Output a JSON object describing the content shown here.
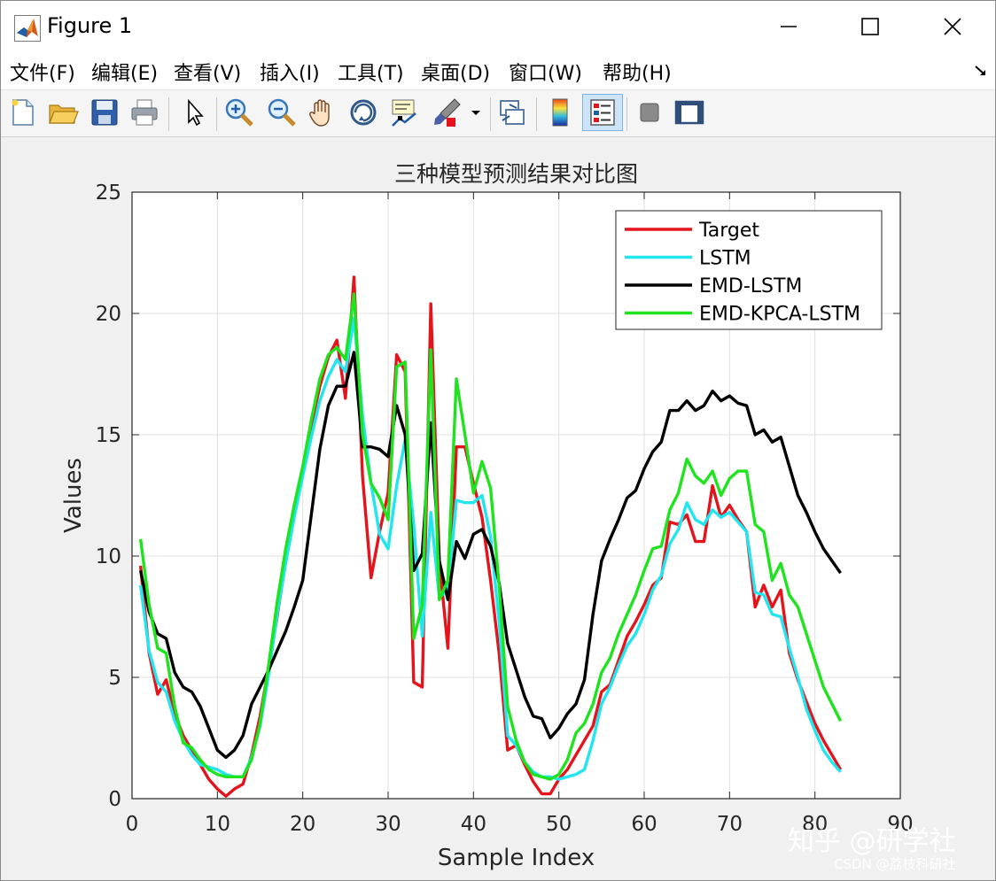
{
  "window": {
    "title": "Figure 1"
  },
  "menu": {
    "items": [
      "文件(F)",
      "编辑(E)",
      "查看(V)",
      "插入(I)",
      "工具(T)",
      "桌面(D)",
      "窗口(W)",
      "帮助(H)"
    ]
  },
  "toolbar": {
    "buttons": [
      "new-figure",
      "open-file",
      "save",
      "print",
      "edit-plot",
      "zoom-in",
      "zoom-out",
      "pan",
      "rotate-3d",
      "data-cursor",
      "brush",
      "brush-dropdown",
      "link-plot",
      "insert-colorbar",
      "insert-legend",
      "hide-plot-tools",
      "show-plot-tools"
    ],
    "active": "insert-legend"
  },
  "chart_data": {
    "type": "line",
    "title": "三种模型预测结果对比图",
    "xlabel": "Sample Index",
    "ylabel": "Values",
    "xlim": [
      0,
      90
    ],
    "ylim": [
      0,
      25
    ],
    "xticks": [
      0,
      10,
      20,
      30,
      40,
      50,
      60,
      70,
      80,
      90
    ],
    "yticks": [
      0,
      5,
      10,
      15,
      20,
      25
    ],
    "grid": true,
    "legend_position": "top-right",
    "series": [
      {
        "name": "Target",
        "color": "#e3141b",
        "x": [
          1,
          2,
          3,
          4,
          5,
          6,
          7,
          8,
          9,
          10,
          11,
          12,
          13,
          14,
          15,
          16,
          17,
          18,
          19,
          20,
          21,
          22,
          23,
          24,
          25,
          26,
          27,
          28,
          29,
          30,
          31,
          32,
          33,
          34,
          35,
          36,
          37,
          38,
          39,
          40,
          41,
          42,
          43,
          44,
          45,
          46,
          47,
          48,
          49,
          50,
          51,
          52,
          53,
          54,
          55,
          56,
          57,
          58,
          59,
          60,
          61,
          62,
          63,
          64,
          65,
          66,
          67,
          68,
          69,
          70,
          71,
          72,
          73,
          74,
          75,
          76,
          77,
          78,
          79,
          80,
          81,
          82,
          83
        ],
        "values": [
          9.6,
          6.0,
          4.3,
          4.9,
          3.5,
          2.6,
          2.0,
          1.4,
          0.8,
          0.4,
          0.1,
          0.4,
          0.6,
          1.8,
          3.4,
          5.4,
          7.5,
          9.8,
          11.9,
          13.6,
          15.4,
          17.0,
          18.2,
          18.9,
          16.5,
          21.5,
          13.3,
          9.1,
          11.0,
          12.6,
          18.3,
          17.6,
          4.8,
          4.6,
          20.4,
          9.8,
          6.2,
          14.5,
          14.5,
          13.0,
          11.6,
          9.0,
          6.0,
          2.0,
          2.2,
          1.4,
          0.7,
          0.2,
          0.2,
          0.8,
          1.2,
          1.8,
          2.4,
          3.0,
          4.4,
          4.7,
          5.7,
          6.7,
          7.3,
          8.0,
          8.8,
          9.1,
          11.4,
          11.3,
          11.7,
          10.6,
          10.6,
          12.9,
          11.6,
          12.1,
          11.5,
          11.0,
          7.9,
          8.8,
          7.9,
          8.6,
          6.0,
          4.9,
          4.0,
          3.1,
          2.4,
          1.8,
          1.2
        ]
      },
      {
        "name": "LSTM",
        "color": "#21e5ef",
        "x": [
          1,
          2,
          3,
          4,
          5,
          6,
          7,
          8,
          9,
          10,
          11,
          12,
          13,
          14,
          15,
          16,
          17,
          18,
          19,
          20,
          21,
          22,
          23,
          24,
          25,
          26,
          27,
          28,
          29,
          30,
          31,
          32,
          33,
          34,
          35,
          36,
          37,
          38,
          39,
          40,
          41,
          42,
          43,
          44,
          45,
          46,
          47,
          48,
          49,
          50,
          51,
          52,
          53,
          54,
          55,
          56,
          57,
          58,
          59,
          60,
          61,
          62,
          63,
          64,
          65,
          66,
          67,
          68,
          69,
          70,
          71,
          72,
          73,
          74,
          75,
          76,
          77,
          78,
          79,
          80,
          81,
          82,
          83
        ],
        "values": [
          8.8,
          6.1,
          4.8,
          4.4,
          3.2,
          2.4,
          1.8,
          1.4,
          1.3,
          1.2,
          1.0,
          0.9,
          0.9,
          1.7,
          3.0,
          5.1,
          7.6,
          9.7,
          11.6,
          13.3,
          14.9,
          16.4,
          17.4,
          18.1,
          17.6,
          19.8,
          15.8,
          13.0,
          10.9,
          10.3,
          12.9,
          14.8,
          11.3,
          6.7,
          11.8,
          8.3,
          8.6,
          12.3,
          12.2,
          12.2,
          12.5,
          10.8,
          7.3,
          2.6,
          2.2,
          1.5,
          1.1,
          0.9,
          0.9,
          0.8,
          0.9,
          1.0,
          1.2,
          2.4,
          3.9,
          4.6,
          5.5,
          6.3,
          6.8,
          7.6,
          8.6,
          9.2,
          10.5,
          11.1,
          12.2,
          11.5,
          11.3,
          11.9,
          11.6,
          11.8,
          11.4,
          11.0,
          8.5,
          8.4,
          7.6,
          7.5,
          6.2,
          5.0,
          3.7,
          2.8,
          2.0,
          1.5,
          1.1
        ]
      },
      {
        "name": "EMD-LSTM",
        "color": "#000000",
        "x": [
          1,
          2,
          3,
          4,
          5,
          6,
          7,
          8,
          9,
          10,
          11,
          12,
          13,
          14,
          15,
          16,
          17,
          18,
          19,
          20,
          21,
          22,
          23,
          24,
          25,
          26,
          27,
          28,
          29,
          30,
          31,
          32,
          33,
          34,
          35,
          36,
          37,
          38,
          39,
          40,
          41,
          42,
          43,
          44,
          45,
          46,
          47,
          48,
          49,
          50,
          51,
          52,
          53,
          54,
          55,
          56,
          57,
          58,
          59,
          60,
          61,
          62,
          63,
          64,
          65,
          66,
          67,
          68,
          69,
          70,
          71,
          72,
          73,
          74,
          75,
          76,
          77,
          78,
          79,
          80,
          81,
          82,
          83
        ],
        "values": [
          9.4,
          7.7,
          6.8,
          6.6,
          5.2,
          4.6,
          4.4,
          3.8,
          2.9,
          2.0,
          1.7,
          2.0,
          2.6,
          3.9,
          4.6,
          5.3,
          6.1,
          6.9,
          7.9,
          9.0,
          11.7,
          14.4,
          16.2,
          17.0,
          17.0,
          18.4,
          14.5,
          14.5,
          14.4,
          14.1,
          16.2,
          15.0,
          9.4,
          10.1,
          15.5,
          9.8,
          8.2,
          10.6,
          9.9,
          10.9,
          11.1,
          10.4,
          8.9,
          6.4,
          5.3,
          4.2,
          3.4,
          3.3,
          2.5,
          2.9,
          3.5,
          3.9,
          4.9,
          7.6,
          9.8,
          10.7,
          11.5,
          12.4,
          12.7,
          13.6,
          14.3,
          14.7,
          16.0,
          16.0,
          16.4,
          16.0,
          16.2,
          16.8,
          16.4,
          16.6,
          16.3,
          16.2,
          15.0,
          15.2,
          14.7,
          14.9,
          13.7,
          12.5,
          11.8,
          11.0,
          10.3,
          9.8,
          9.3
        ]
      },
      {
        "name": "EMD-KPCA-LSTM",
        "color": "#1fe31f",
        "x": [
          1,
          2,
          3,
          4,
          5,
          6,
          7,
          8,
          9,
          10,
          11,
          12,
          13,
          14,
          15,
          16,
          17,
          18,
          19,
          20,
          21,
          22,
          23,
          24,
          25,
          26,
          27,
          28,
          29,
          30,
          31,
          32,
          33,
          34,
          35,
          36,
          37,
          38,
          39,
          40,
          41,
          42,
          43,
          44,
          45,
          46,
          47,
          48,
          49,
          50,
          51,
          52,
          53,
          54,
          55,
          56,
          57,
          58,
          59,
          60,
          61,
          62,
          63,
          64,
          65,
          66,
          67,
          68,
          69,
          70,
          71,
          72,
          73,
          74,
          75,
          76,
          77,
          78,
          79,
          80,
          81,
          82,
          83
        ],
        "values": [
          10.7,
          8.0,
          6.2,
          6.0,
          3.8,
          2.3,
          2.1,
          1.6,
          1.2,
          1.0,
          0.9,
          0.9,
          0.9,
          1.6,
          3.1,
          5.5,
          8.1,
          10.3,
          12.1,
          13.7,
          15.6,
          17.3,
          18.3,
          18.6,
          18.1,
          20.8,
          15.0,
          13.0,
          12.4,
          11.5,
          17.8,
          18.0,
          6.6,
          8.0,
          18.5,
          8.2,
          9.0,
          17.3,
          15.0,
          12.6,
          13.9,
          12.8,
          8.8,
          3.8,
          2.4,
          1.5,
          1.0,
          0.9,
          0.8,
          1.0,
          1.6,
          2.7,
          3.1,
          3.9,
          5.2,
          5.8,
          6.8,
          7.6,
          8.4,
          9.4,
          10.3,
          10.4,
          11.9,
          12.6,
          14.0,
          13.3,
          13.0,
          13.5,
          12.5,
          13.2,
          13.5,
          13.5,
          11.3,
          11.0,
          9.0,
          9.7,
          8.4,
          7.9,
          6.8,
          5.7,
          4.6,
          3.9,
          3.2
        ]
      }
    ]
  },
  "watermark": {
    "primary": "知乎 @研学社",
    "secondary": "CSDN @荔枝科研社"
  }
}
